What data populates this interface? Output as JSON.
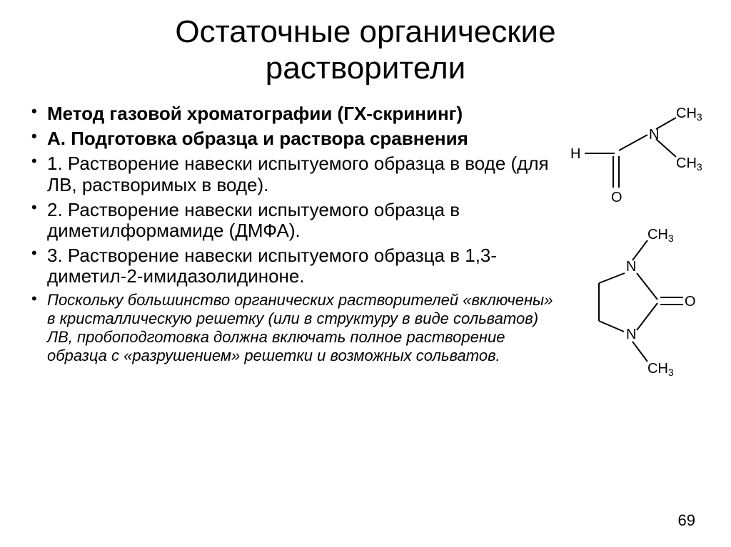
{
  "title_line1": "Остаточные органические",
  "title_line2": "растворители",
  "bullets": [
    {
      "style": "b1 bold",
      "text": "Метод газовой хроматографии (ГХ-скрининг)"
    },
    {
      "style": "b1 bold",
      "text": "А. Подготовка образца и раствора сравнения"
    },
    {
      "style": "b2",
      "text": "1. Растворение навески испытуемого образца в воде (для ЛВ, растворимых в воде)."
    },
    {
      "style": "b2",
      "text": "2. Растворение навески испытуемого образца в диметилформамиде (ДМФА)."
    },
    {
      "style": "b2",
      "text": "3. Растворение навески испытуемого образца в 1,3-диметил-2-имидазолидиноне."
    },
    {
      "style": "b3",
      "text": "Поскольку большинство органических растворителей «включены» в кристаллическую решетку (или в структуру в виде сольватов) ЛВ, пробоподготовка должна включать полное растворение образца с «разрушением» решетки и возможных сольватов."
    }
  ],
  "page_number": "69",
  "molecule1": {
    "labels": {
      "H": "H",
      "N": "N",
      "O": "O",
      "CH3_top": "CH₃",
      "CH3_bot": "CH₃"
    },
    "stroke": "#000000",
    "stroke_width": 2,
    "font_size": 20,
    "sub_size": 14
  },
  "molecule2": {
    "labels": {
      "N": "N",
      "O": "O",
      "CH3_top": "CH₃",
      "CH3_bot": "CH₃"
    },
    "stroke": "#000000",
    "stroke_width": 2,
    "font_size": 20,
    "sub_size": 14
  }
}
